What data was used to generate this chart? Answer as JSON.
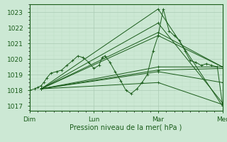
{
  "xlabel": "Pression niveau de la mer( hPa )",
  "bg_color": "#cce8d4",
  "grid_major_color": "#aacbb4",
  "grid_minor_color": "#bbddc4",
  "line_color": "#1a5c1a",
  "yticks": [
    1017,
    1018,
    1019,
    1020,
    1021,
    1022,
    1023
  ],
  "ylim": [
    1016.7,
    1023.5
  ],
  "xlim": [
    0.0,
    3.0
  ],
  "xtick_labels": [
    "Dim",
    "Lun",
    "Mar",
    "Mer"
  ],
  "xtick_positions": [
    0,
    1,
    2,
    3
  ],
  "ensemble_lines": [
    {
      "x": [
        0.18,
        2.0,
        3.0
      ],
      "y": [
        1018.1,
        1023.2,
        1017.0
      ]
    },
    {
      "x": [
        0.18,
        2.0,
        3.0
      ],
      "y": [
        1018.1,
        1022.3,
        1017.2
      ]
    },
    {
      "x": [
        0.18,
        2.0,
        3.0
      ],
      "y": [
        1018.1,
        1021.7,
        1019.5
      ]
    },
    {
      "x": [
        0.18,
        2.0,
        3.0
      ],
      "y": [
        1018.1,
        1021.5,
        1019.5
      ]
    },
    {
      "x": [
        0.18,
        2.0,
        3.0
      ],
      "y": [
        1018.1,
        1019.5,
        1019.5
      ]
    },
    {
      "x": [
        0.18,
        2.0,
        3.0
      ],
      "y": [
        1018.1,
        1019.3,
        1019.4
      ]
    },
    {
      "x": [
        0.18,
        2.0,
        3.0
      ],
      "y": [
        1018.1,
        1019.2,
        1018.5
      ]
    },
    {
      "x": [
        0.18,
        2.0,
        3.0
      ],
      "y": [
        1018.1,
        1018.5,
        1017.1
      ]
    }
  ],
  "main_x": [
    0.0,
    0.08,
    0.13,
    0.18,
    0.22,
    0.27,
    0.33,
    0.42,
    0.5,
    0.58,
    0.67,
    0.75,
    0.83,
    0.92,
    1.0,
    1.08,
    1.13,
    1.17,
    1.25,
    1.33,
    1.42,
    1.5,
    1.58,
    1.67,
    1.75,
    1.83,
    1.92,
    2.0,
    2.08,
    2.17,
    2.25,
    2.33,
    2.42,
    2.5,
    2.58,
    2.67,
    2.75,
    2.83,
    2.92,
    3.0
  ],
  "main_y": [
    1018.0,
    1018.1,
    1018.2,
    1018.3,
    1018.5,
    1018.8,
    1019.1,
    1019.2,
    1019.3,
    1019.6,
    1019.9,
    1020.2,
    1020.1,
    1019.8,
    1019.4,
    1019.6,
    1020.1,
    1020.2,
    1019.8,
    1019.2,
    1018.6,
    1018.0,
    1017.8,
    1018.1,
    1018.5,
    1019.0,
    1020.5,
    1021.5,
    1023.2,
    1021.8,
    1021.5,
    1021.2,
    1020.5,
    1019.9,
    1019.8,
    1019.6,
    1019.7,
    1019.6,
    1019.5,
    1017.1
  ]
}
